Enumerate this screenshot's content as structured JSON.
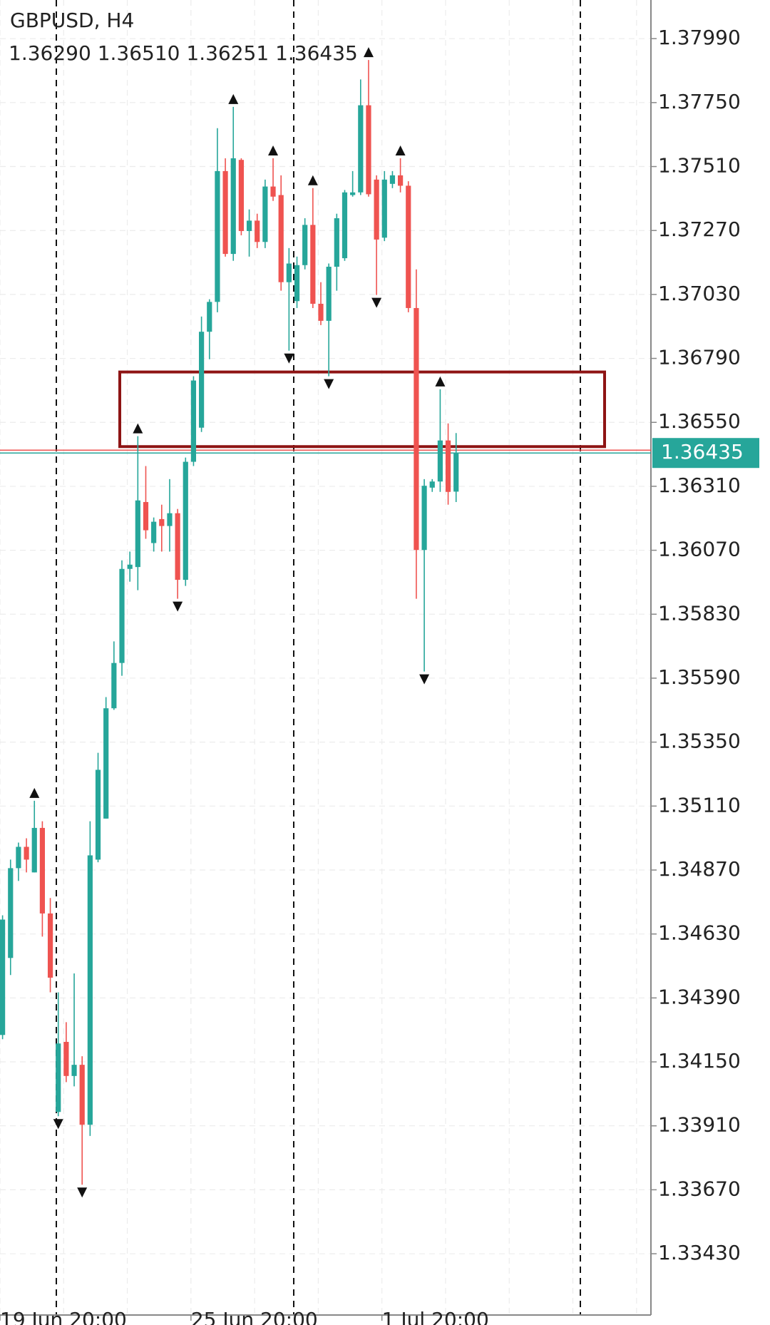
{
  "chart_data": {
    "type": "candlestick",
    "title": "GBPUSD, H4",
    "subtitle": "1.36290 1.36510 1.36251 1.36435",
    "categories": [
      "19 Jun 20:00",
      null,
      null,
      null,
      null,
      null,
      null,
      null,
      null,
      null,
      null,
      null,
      null,
      null,
      null,
      null,
      null,
      null,
      null,
      null,
      null,
      null,
      null,
      null,
      "25 Jun 20:00",
      null,
      null,
      null,
      null,
      null,
      null,
      null,
      null,
      null,
      null,
      null,
      null,
      null,
      null,
      null,
      null,
      null,
      null,
      null,
      null,
      null,
      null,
      null,
      "1 Jul 20:00",
      null,
      null,
      null,
      null,
      null,
      null,
      null,
      null,
      null
    ],
    "open": [
      1.34251,
      1.3454,
      1.34877,
      1.34957,
      1.34861,
      1.35028,
      1.34707,
      1.33962,
      1.34225,
      1.34097,
      1.34139,
      1.33914,
      1.34909,
      1.35063,
      1.35477,
      1.35647,
      1.36,
      1.36007,
      1.36251,
      1.36097,
      1.36187,
      1.36161,
      1.36209,
      1.35959,
      1.36402,
      1.3653,
      1.3689,
      1.37002,
      1.37493,
      1.37182,
      1.37535,
      1.37268,
      1.37307,
      1.37227,
      1.37435,
      1.37403,
      1.37076,
      1.37005,
      1.3714,
      1.37291,
      1.36995,
      1.36931,
      1.37134,
      1.37166,
      1.37403,
      1.37413,
      1.3774,
      1.37461,
      1.37243,
      1.37445,
      1.37477,
      1.37438,
      1.36979,
      1.36071,
      1.36305,
      1.36328,
      1.36482,
      1.3629
    ],
    "high": [
      1.347,
      1.34909,
      1.34973,
      1.34989,
      1.3513,
      1.35053,
      1.34765,
      1.34411,
      1.34299,
      1.34482,
      1.34171,
      1.35053,
      1.3531,
      1.35519,
      1.35728,
      1.36032,
      1.36065,
      1.36498,
      1.36386,
      1.36193,
      1.36241,
      1.36337,
      1.36225,
      1.36418,
      1.36723,
      1.36947,
      1.37012,
      1.37654,
      1.37541,
      1.37734,
      1.37541,
      1.37349,
      1.37333,
      1.37461,
      1.37541,
      1.37477,
      1.37204,
      1.37172,
      1.37316,
      1.37429,
      1.37076,
      1.37146,
      1.37333,
      1.37422,
      1.37493,
      1.37837,
      1.3791,
      1.37477,
      1.37493,
      1.37493,
      1.37541,
      1.37455,
      1.37124,
      1.36337,
      1.36337,
      1.36674,
      1.36546,
      1.3651
    ],
    "low": [
      1.34235,
      1.34476,
      1.34829,
      1.34861,
      1.34861,
      1.3462,
      1.34411,
      1.33946,
      1.34074,
      1.34058,
      1.33689,
      1.33872,
      1.34899,
      1.35063,
      1.35471,
      1.35599,
      1.35952,
      1.3592,
      1.36113,
      1.36065,
      1.36065,
      1.36065,
      1.35888,
      1.35936,
      1.36386,
      1.36514,
      1.36787,
      1.36963,
      1.37172,
      1.37156,
      1.37252,
      1.37172,
      1.37204,
      1.37204,
      1.37381,
      1.37044,
      1.36819,
      1.36979,
      1.37124,
      1.36979,
      1.36915,
      1.36723,
      1.37044,
      1.37156,
      1.37397,
      1.37403,
      1.37397,
      1.37028,
      1.3723,
      1.37429,
      1.37413,
      1.36963,
      1.35888,
      1.35615,
      1.36289,
      1.36289,
      1.36241,
      1.36251
    ],
    "close": [
      1.34684,
      1.34877,
      1.34957,
      1.34909,
      1.35028,
      1.34707,
      1.34466,
      1.34219,
      1.34097,
      1.34139,
      1.33914,
      1.34925,
      1.35246,
      1.35477,
      1.35647,
      1.36,
      1.36016,
      1.36257,
      1.36145,
      1.36177,
      1.36161,
      1.36209,
      1.35959,
      1.36402,
      1.36707,
      1.3689,
      1.37002,
      1.37493,
      1.37182,
      1.37541,
      1.37268,
      1.37307,
      1.37227,
      1.37435,
      1.37397,
      1.37076,
      1.37146,
      1.3714,
      1.37291,
      1.36995,
      1.36931,
      1.37134,
      1.37316,
      1.37413,
      1.37413,
      1.3774,
      1.37406,
      1.37236,
      1.37461,
      1.37477,
      1.37438,
      1.36979,
      1.36071,
      1.36312,
      1.36328,
      1.36482,
      1.36289,
      1.36435
    ],
    "up_color": "#26a69a",
    "down_color": "#ef5350",
    "last_price": 1.36435,
    "zone": {
      "from": 1.36739,
      "to": 1.36459,
      "color": "#8e1414"
    },
    "ylim": [
      1.332,
      1.38135
    ],
    "yticks": [
      {
        "value": 1.3799,
        "label": "1.37990"
      },
      {
        "value": 1.3775,
        "label": "1.37750"
      },
      {
        "value": 1.3751,
        "label": "1.37510"
      },
      {
        "value": 1.3727,
        "label": "1.37270"
      },
      {
        "value": 1.3703,
        "label": "1.37030"
      },
      {
        "value": 1.3679,
        "label": "1.36790"
      },
      {
        "value": 1.3655,
        "label": "1.36550"
      },
      {
        "value": 1.3631,
        "label": "1.36310"
      },
      {
        "value": 1.3607,
        "label": "1.36070"
      },
      {
        "value": 1.3583,
        "label": "1.35830"
      },
      {
        "value": 1.3559,
        "label": "1.35590"
      },
      {
        "value": 1.3535,
        "label": "1.35350"
      },
      {
        "value": 1.3511,
        "label": "1.35110"
      },
      {
        "value": 1.3487,
        "label": "1.34870"
      },
      {
        "value": 1.3463,
        "label": "1.34630"
      },
      {
        "value": 1.3439,
        "label": "1.34390"
      },
      {
        "value": 1.3415,
        "label": "1.34150"
      },
      {
        "value": 1.3391,
        "label": "1.33910"
      },
      {
        "value": 1.3367,
        "label": "1.33670"
      },
      {
        "value": 1.3343,
        "label": "1.33430"
      }
    ],
    "grid": true
  }
}
